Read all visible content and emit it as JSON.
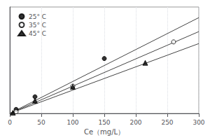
{
  "chart_data": {
    "type": "scatter",
    "xlabel": "Ce（mg/L）",
    "xlim": [
      0,
      300
    ],
    "ylim": [
      0,
      3.2
    ],
    "xticks": [
      0,
      50,
      100,
      150,
      200,
      250,
      300
    ],
    "tick_labels": "x",
    "grid": "x",
    "legend": "upper left",
    "series": [
      {
        "name": "25° C",
        "type": "scatter",
        "marker": "circle",
        "color": "#000000",
        "x": [
          10,
          40,
          150
        ],
        "values": [
          0.12,
          0.5,
          1.65
        ]
      },
      {
        "name": "35° C",
        "type": "scatter",
        "marker": "open_circle",
        "color": "#000000",
        "x": [
          10,
          100,
          260
        ],
        "values": [
          0.05,
          0.82,
          2.15
        ]
      },
      {
        "name": "45° C",
        "type": "scatter",
        "marker": "triangle",
        "color": "#000000",
        "x": [
          5,
          40,
          100,
          215
        ],
        "values": [
          0.02,
          0.38,
          0.8,
          1.52
        ]
      },
      {
        "type": "line",
        "color": "#444444",
        "line_style": "solid",
        "x": [
          0,
          300
        ],
        "values": [
          0,
          2.88
        ]
      },
      {
        "type": "line",
        "color": "#444444",
        "line_style": "solid",
        "x": [
          0,
          300
        ],
        "values": [
          0,
          2.46
        ]
      },
      {
        "type": "line",
        "color": "#444444",
        "line_style": "solid",
        "x": [
          0,
          300
        ],
        "values": [
          0,
          2.1
        ]
      }
    ]
  }
}
